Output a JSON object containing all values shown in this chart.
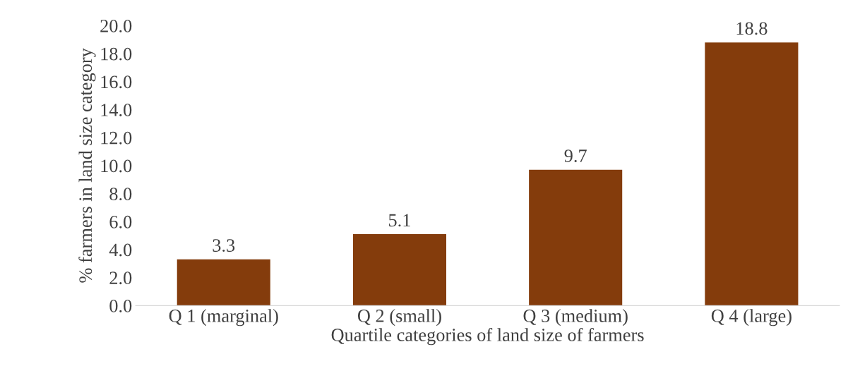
{
  "chart_data": {
    "type": "bar",
    "xlabel": "Quartile categories of land size of farmers",
    "ylabel": "% farmers in land size category",
    "categories": [
      "Q 1 (marginal)",
      "Q 2 (small)",
      "Q 3 (medium)",
      "Q 4 (large)"
    ],
    "values": [
      3.3,
      5.1,
      9.7,
      18.8
    ],
    "color": "#843c0c",
    "data_labels": true,
    "grid": false,
    "legend": false,
    "ylim": [
      0,
      20
    ],
    "yticks": [
      {
        "value": 0,
        "label": "0.0"
      },
      {
        "value": 2,
        "label": "2.0"
      },
      {
        "value": 4,
        "label": "4.0"
      },
      {
        "value": 6,
        "label": "6.0"
      },
      {
        "value": 8,
        "label": "8.0"
      },
      {
        "value": 10,
        "label": "10.0"
      },
      {
        "value": 12,
        "label": "12.0"
      },
      {
        "value": 14,
        "label": "14.0"
      },
      {
        "value": 16,
        "label": "16.0"
      },
      {
        "value": 18,
        "label": "18.0"
      },
      {
        "value": 20,
        "label": "20.0"
      }
    ]
  }
}
